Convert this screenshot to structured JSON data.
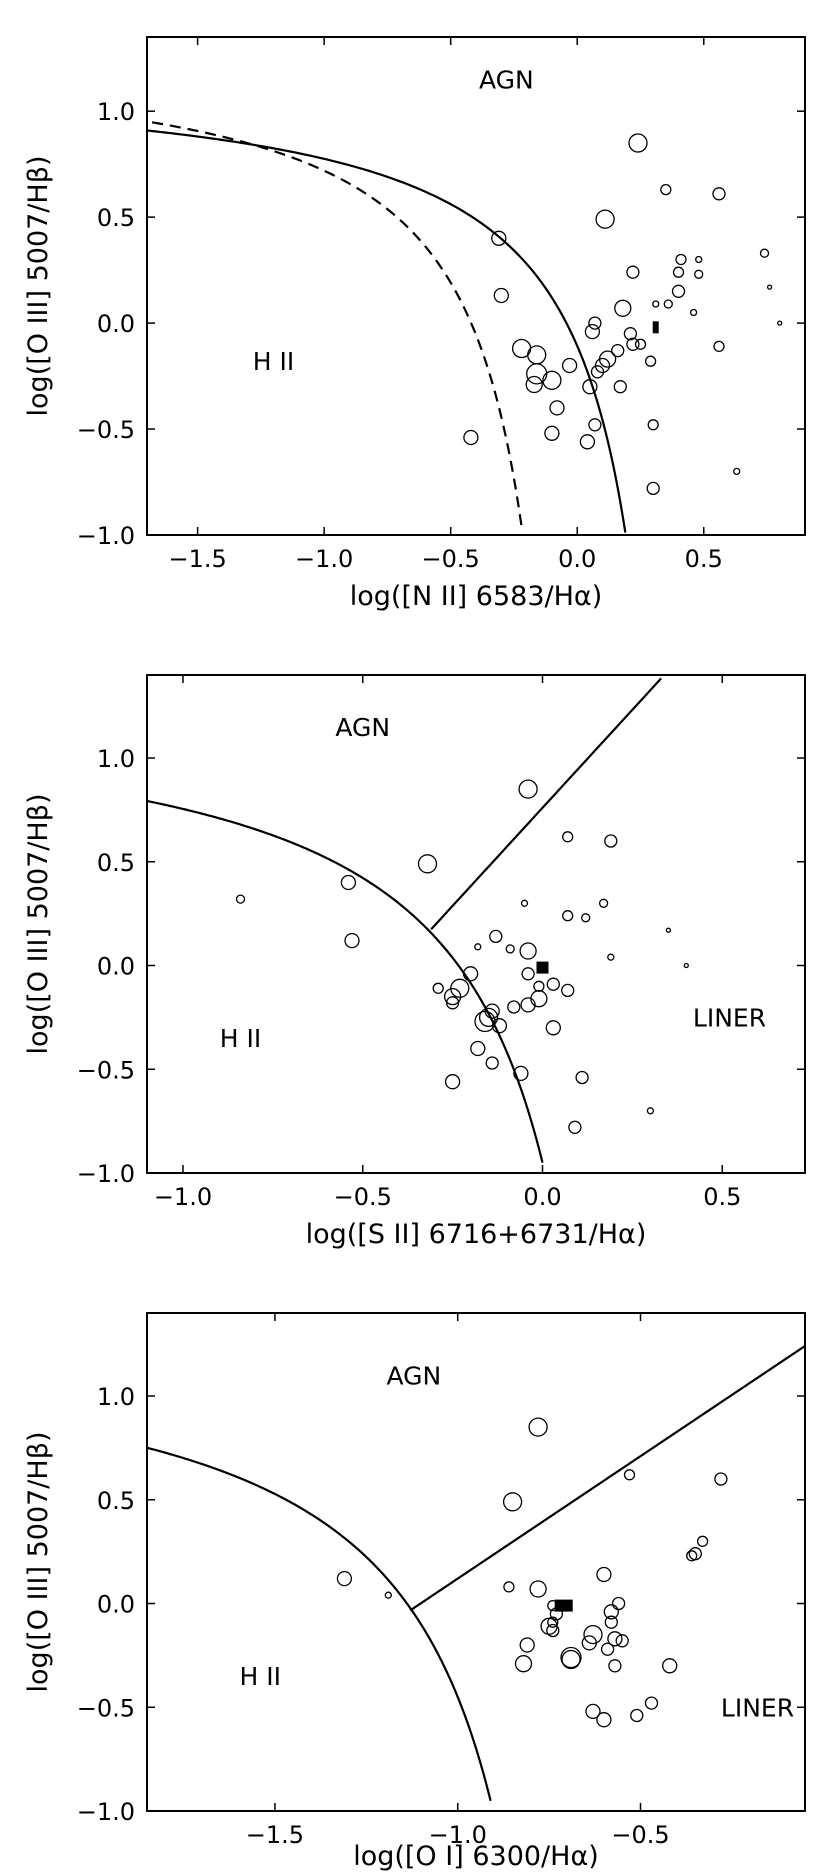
{
  "chart_data": [
    {
      "type": "scatter",
      "panel": "N II",
      "xlabel": "log([N II] 6583/Hα)",
      "ylabel": "log([O III] 5007/Hβ)",
      "xlim": [
        -1.7,
        0.9
      ],
      "ylim": [
        -1.0,
        1.35
      ],
      "xticks": [
        -1.5,
        -1.0,
        -0.5,
        0.0,
        0.5
      ],
      "xtick_labels": [
        "−1.5",
        "−1.0",
        "−0.5",
        "0.0",
        "0.5"
      ],
      "yticks": [
        -1.0,
        -0.5,
        0.0,
        0.5,
        1.0
      ],
      "ytick_labels": [
        "−1.0",
        "−0.5",
        "0.0",
        "0.5",
        "1.0"
      ],
      "region_labels": [
        {
          "text": "AGN",
          "x": -0.28,
          "y": 1.15
        },
        {
          "text": "H II",
          "x": -1.2,
          "y": -0.18
        },
        {
          "text": "",
          "x": 0,
          "y": 0
        }
      ],
      "curves": [
        {
          "name": "solid",
          "style": "solid",
          "formula": "0.61/(x-0.47)+1.19",
          "xmax": 0.19
        },
        {
          "name": "dashed",
          "style": "dashed",
          "formula": "0.61/(x-0.05)+1.3",
          "xmax": -0.22
        }
      ],
      "points": [
        {
          "x": 0.24,
          "y": 0.85,
          "s": 9
        },
        {
          "x": 0.35,
          "y": 0.63,
          "s": 5
        },
        {
          "x": 0.56,
          "y": 0.61,
          "s": 6
        },
        {
          "x": 0.11,
          "y": 0.49,
          "s": 9
        },
        {
          "x": -0.31,
          "y": 0.4,
          "s": 7
        },
        {
          "x": 0.74,
          "y": 0.33,
          "s": 4
        },
        {
          "x": 0.41,
          "y": 0.3,
          "s": 5
        },
        {
          "x": 0.48,
          "y": 0.3,
          "s": 3
        },
        {
          "x": 0.22,
          "y": 0.24,
          "s": 6
        },
        {
          "x": 0.4,
          "y": 0.24,
          "s": 5
        },
        {
          "x": 0.48,
          "y": 0.23,
          "s": 4
        },
        {
          "x": 0.76,
          "y": 0.17,
          "s": 2
        },
        {
          "x": 0.4,
          "y": 0.15,
          "s": 6
        },
        {
          "x": -0.3,
          "y": 0.13,
          "s": 7
        },
        {
          "x": 0.31,
          "y": 0.09,
          "s": 3
        },
        {
          "x": 0.36,
          "y": 0.09,
          "s": 4
        },
        {
          "x": 0.18,
          "y": 0.07,
          "s": 8
        },
        {
          "x": 0.46,
          "y": 0.05,
          "s": 3
        },
        {
          "x": 0.07,
          "y": 0.0,
          "s": 6
        },
        {
          "x": 0.8,
          "y": 0.0,
          "s": 2
        },
        {
          "x": 0.06,
          "y": -0.04,
          "s": 7
        },
        {
          "x": 0.21,
          "y": -0.05,
          "s": 6
        },
        {
          "x": 0.22,
          "y": -0.1,
          "s": 6
        },
        {
          "x": 0.25,
          "y": -0.1,
          "s": 5
        },
        {
          "x": 0.56,
          "y": -0.11,
          "s": 5
        },
        {
          "x": -0.22,
          "y": -0.12,
          "s": 9
        },
        {
          "x": 0.16,
          "y": -0.13,
          "s": 6
        },
        {
          "x": -0.16,
          "y": -0.15,
          "s": 9
        },
        {
          "x": 0.12,
          "y": -0.17,
          "s": 8
        },
        {
          "x": 0.29,
          "y": -0.18,
          "s": 5
        },
        {
          "x": -0.03,
          "y": -0.2,
          "s": 7
        },
        {
          "x": 0.1,
          "y": -0.2,
          "s": 7
        },
        {
          "x": 0.08,
          "y": -0.23,
          "s": 6
        },
        {
          "x": -0.16,
          "y": -0.24,
          "s": 10
        },
        {
          "x": -0.1,
          "y": -0.27,
          "s": 9
        },
        {
          "x": -0.17,
          "y": -0.29,
          "s": 8
        },
        {
          "x": 0.05,
          "y": -0.3,
          "s": 7
        },
        {
          "x": 0.17,
          "y": -0.3,
          "s": 6
        },
        {
          "x": -0.08,
          "y": -0.4,
          "s": 7
        },
        {
          "x": 0.07,
          "y": -0.48,
          "s": 6
        },
        {
          "x": 0.3,
          "y": -0.48,
          "s": 5
        },
        {
          "x": -0.1,
          "y": -0.52,
          "s": 7
        },
        {
          "x": -0.42,
          "y": -0.54,
          "s": 7
        },
        {
          "x": 0.04,
          "y": -0.56,
          "s": 7
        },
        {
          "x": 0.63,
          "y": -0.7,
          "s": 3
        },
        {
          "x": 0.3,
          "y": -0.78,
          "s": 6
        }
      ],
      "special_point": {
        "x": 0.31,
        "y": -0.02,
        "w": 6,
        "h": 12
      }
    },
    {
      "type": "scatter",
      "panel": "S II",
      "xlabel": "log([S II] 6716+6731/Hα)",
      "ylabel": "log([O III] 5007/Hβ)",
      "xlim": [
        -1.1,
        0.73
      ],
      "ylim": [
        -1.0,
        1.4
      ],
      "xticks": [
        -1.0,
        -0.5,
        0.0,
        0.5
      ],
      "xtick_labels": [
        "−1.0",
        "−0.5",
        "0.0",
        "0.5"
      ],
      "yticks": [
        -1.0,
        -0.5,
        0.0,
        0.5,
        1.0
      ],
      "ytick_labels": [
        "−1.0",
        "−0.5",
        "0.0",
        "0.5",
        "1.0"
      ],
      "region_labels": [
        {
          "text": "AGN",
          "x": -0.5,
          "y": 1.15
        },
        {
          "text": "H II",
          "x": -0.84,
          "y": -0.35
        },
        {
          "text": "LINER",
          "x": 0.52,
          "y": -0.25
        }
      ],
      "curves": [
        {
          "name": "kewley",
          "style": "solid",
          "formula": "0.72/(x-0.32)+1.30",
          "xmax": 0.0
        },
        {
          "name": "seyfert-liner",
          "style": "solid",
          "formula": "1.89*x+0.76",
          "xmin": -0.31,
          "xmax": 0.33
        }
      ],
      "points": [
        {
          "x": -0.04,
          "y": 0.85,
          "s": 9
        },
        {
          "x": 0.07,
          "y": 0.62,
          "s": 5
        },
        {
          "x": 0.19,
          "y": 0.6,
          "s": 6
        },
        {
          "x": -0.32,
          "y": 0.49,
          "s": 9
        },
        {
          "x": -0.54,
          "y": 0.4,
          "s": 7
        },
        {
          "x": -0.84,
          "y": 0.32,
          "s": 4
        },
        {
          "x": -0.05,
          "y": 0.3,
          "s": 3
        },
        {
          "x": 0.17,
          "y": 0.3,
          "s": 4
        },
        {
          "x": 0.07,
          "y": 0.24,
          "s": 5
        },
        {
          "x": 0.12,
          "y": 0.23,
          "s": 4
        },
        {
          "x": 0.35,
          "y": 0.17,
          "s": 2
        },
        {
          "x": -0.13,
          "y": 0.14,
          "s": 6
        },
        {
          "x": -0.53,
          "y": 0.12,
          "s": 7
        },
        {
          "x": -0.18,
          "y": 0.09,
          "s": 3
        },
        {
          "x": -0.09,
          "y": 0.08,
          "s": 4
        },
        {
          "x": -0.04,
          "y": 0.07,
          "s": 8
        },
        {
          "x": 0.19,
          "y": 0.04,
          "s": 3
        },
        {
          "x": 0.4,
          "y": 0.0,
          "s": 2
        },
        {
          "x": -0.2,
          "y": -0.04,
          "s": 7
        },
        {
          "x": -0.04,
          "y": -0.04,
          "s": 6
        },
        {
          "x": 0.03,
          "y": -0.09,
          "s": 6
        },
        {
          "x": -0.01,
          "y": -0.1,
          "s": 5
        },
        {
          "x": -0.29,
          "y": -0.11,
          "s": 5
        },
        {
          "x": -0.23,
          "y": -0.11,
          "s": 9
        },
        {
          "x": 0.07,
          "y": -0.12,
          "s": 6
        },
        {
          "x": -0.25,
          "y": -0.15,
          "s": 8
        },
        {
          "x": -0.01,
          "y": -0.16,
          "s": 8
        },
        {
          "x": -0.25,
          "y": -0.18,
          "s": 6
        },
        {
          "x": -0.04,
          "y": -0.19,
          "s": 7
        },
        {
          "x": -0.08,
          "y": -0.2,
          "s": 6
        },
        {
          "x": -0.14,
          "y": -0.22,
          "s": 7
        },
        {
          "x": -0.15,
          "y": -0.25,
          "s": 9
        },
        {
          "x": -0.16,
          "y": -0.27,
          "s": 10
        },
        {
          "x": -0.12,
          "y": -0.29,
          "s": 7
        },
        {
          "x": 0.03,
          "y": -0.3,
          "s": 7
        },
        {
          "x": -0.18,
          "y": -0.4,
          "s": 7
        },
        {
          "x": -0.14,
          "y": -0.47,
          "s": 6
        },
        {
          "x": -0.06,
          "y": -0.52,
          "s": 7
        },
        {
          "x": 0.11,
          "y": -0.54,
          "s": 6
        },
        {
          "x": -0.25,
          "y": -0.56,
          "s": 7
        },
        {
          "x": 0.3,
          "y": -0.7,
          "s": 3
        },
        {
          "x": 0.09,
          "y": -0.78,
          "s": 6
        }
      ],
      "special_point": {
        "x": 0.0,
        "y": -0.01,
        "w": 12,
        "h": 12
      }
    },
    {
      "type": "scatter",
      "panel": "O I",
      "xlabel": "log([O I] 6300/Hα)",
      "ylabel": "log([O III] 5007/Hβ)",
      "xlim": [
        -1.85,
        -0.05
      ],
      "ylim": [
        -1.0,
        1.4
      ],
      "xticks": [
        -1.5,
        -1.0,
        -0.5
      ],
      "xtick_labels": [
        "−1.5",
        "−1.0",
        "−0.5"
      ],
      "yticks": [
        -1.0,
        -0.5,
        0.0,
        0.5,
        1.0
      ],
      "ytick_labels": [
        "−1.0",
        "−0.5",
        "0.0",
        "0.5",
        "1.0"
      ],
      "region_labels": [
        {
          "text": "AGN",
          "x": -1.12,
          "y": 1.1
        },
        {
          "text": "H II",
          "x": -1.54,
          "y": -0.35
        },
        {
          "text": "LINER",
          "x": -0.18,
          "y": -0.5
        }
      ],
      "curves": [
        {
          "name": "kewley",
          "style": "solid",
          "formula": "0.73/(x+0.59)+1.33",
          "xmax": -0.91
        },
        {
          "name": "seyfert-liner",
          "style": "solid",
          "formula": "1.18*x+1.30",
          "xmin": -1.13,
          "xmax": -0.05
        }
      ],
      "points": [
        {
          "x": -0.78,
          "y": 0.85,
          "s": 9
        },
        {
          "x": -0.53,
          "y": 0.62,
          "s": 5
        },
        {
          "x": -0.28,
          "y": 0.6,
          "s": 6
        },
        {
          "x": -0.85,
          "y": 0.49,
          "s": 9
        },
        {
          "x": -0.33,
          "y": 0.3,
          "s": 5
        },
        {
          "x": -0.35,
          "y": 0.24,
          "s": 6
        },
        {
          "x": -0.36,
          "y": 0.23,
          "s": 5
        },
        {
          "x": -0.6,
          "y": 0.14,
          "s": 7
        },
        {
          "x": -1.31,
          "y": 0.12,
          "s": 7
        },
        {
          "x": -0.86,
          "y": 0.08,
          "s": 5
        },
        {
          "x": -0.78,
          "y": 0.07,
          "s": 8
        },
        {
          "x": -1.19,
          "y": 0.04,
          "s": 3
        },
        {
          "x": -0.56,
          "y": 0.0,
          "s": 6
        },
        {
          "x": -0.74,
          "y": -0.01,
          "s": 5
        },
        {
          "x": -0.58,
          "y": -0.04,
          "s": 7
        },
        {
          "x": -0.73,
          "y": -0.05,
          "s": 6
        },
        {
          "x": -0.74,
          "y": -0.09,
          "s": 5
        },
        {
          "x": -0.58,
          "y": -0.09,
          "s": 6
        },
        {
          "x": -0.75,
          "y": -0.11,
          "s": 8
        },
        {
          "x": -0.74,
          "y": -0.13,
          "s": 6
        },
        {
          "x": -0.63,
          "y": -0.15,
          "s": 9
        },
        {
          "x": -0.57,
          "y": -0.17,
          "s": 7
        },
        {
          "x": -0.55,
          "y": -0.18,
          "s": 6
        },
        {
          "x": -0.64,
          "y": -0.19,
          "s": 7
        },
        {
          "x": -0.81,
          "y": -0.2,
          "s": 7
        },
        {
          "x": -0.59,
          "y": -0.22,
          "s": 6
        },
        {
          "x": -0.69,
          "y": -0.26,
          "s": 10
        },
        {
          "x": -0.69,
          "y": -0.27,
          "s": 9
        },
        {
          "x": -0.82,
          "y": -0.29,
          "s": 8
        },
        {
          "x": -0.57,
          "y": -0.3,
          "s": 6
        },
        {
          "x": -0.42,
          "y": -0.3,
          "s": 7
        },
        {
          "x": -0.47,
          "y": -0.48,
          "s": 6
        },
        {
          "x": -0.63,
          "y": -0.52,
          "s": 7
        },
        {
          "x": -0.51,
          "y": -0.54,
          "s": 6
        },
        {
          "x": -0.6,
          "y": -0.56,
          "s": 7
        }
      ],
      "special_point": {
        "x": -0.71,
        "y": -0.01,
        "w": 18,
        "h": 12
      }
    }
  ]
}
